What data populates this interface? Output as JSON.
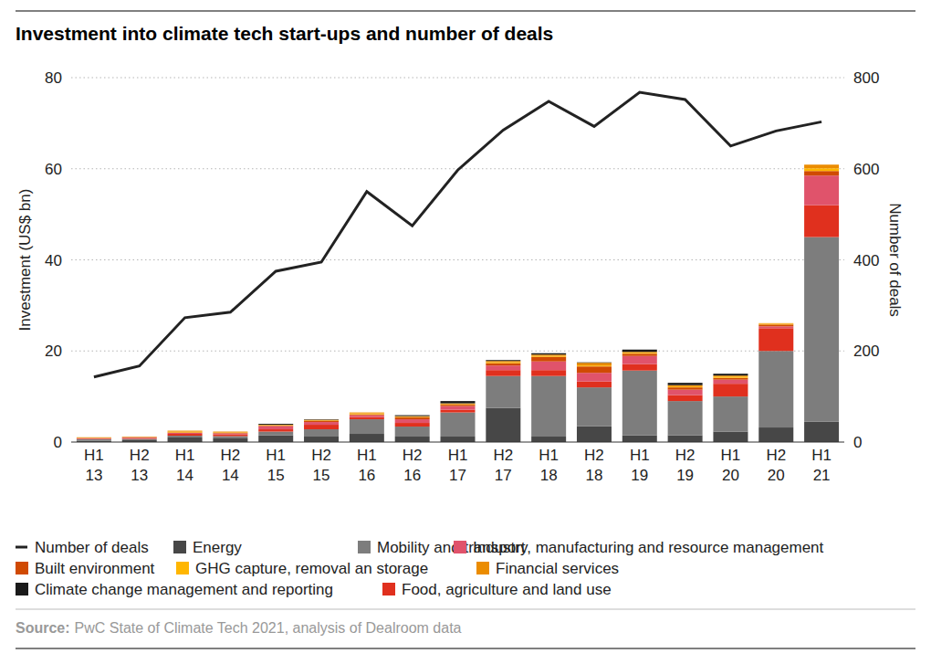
{
  "chart_data": {
    "type": "bar",
    "title": "Investment into climate tech start-ups and number of deals",
    "y_label": "Investment (US$ bn)",
    "y2_label": "Number of deals",
    "source_label": "Source:",
    "source": "PwC State of Climate Tech 2021, analysis of Dealroom data",
    "stacked": true,
    "grid": true,
    "legend": "bottom",
    "categories": [
      "H1 13",
      "H2 13",
      "H1 14",
      "H2 14",
      "H1 15",
      "H2 15",
      "H1 16",
      "H2 16",
      "H1 17",
      "H2 17",
      "H1 18",
      "H2 18",
      "H1 19",
      "H2 19",
      "H1 20",
      "H2 20",
      "H1 21"
    ],
    "ylim": [
      0,
      80
    ],
    "yticks": [
      0,
      20,
      40,
      60,
      80
    ],
    "y2lim": [
      0,
      800
    ],
    "y2ticks": [
      0,
      200,
      400,
      600,
      800
    ],
    "series": [
      {
        "name": "Energy",
        "color": "#474747",
        "values": [
          0.3,
          0.4,
          1.0,
          0.8,
          1.5,
          1.2,
          1.8,
          1.2,
          1.2,
          7.5,
          1.2,
          3.5,
          1.5,
          1.5,
          2.3,
          3.2,
          4.5
        ]
      },
      {
        "name": "Mobility and transport",
        "color": "#7d7d7d",
        "values": [
          0.3,
          0.3,
          0.4,
          0.5,
          0.8,
          1.6,
          3.2,
          2.2,
          5.3,
          7.0,
          13.3,
          8.5,
          14.2,
          7.5,
          7.7,
          16.8,
          40.5
        ]
      },
      {
        "name": "Food, agriculture and land use",
        "color": "#e0301e",
        "values": [
          0.1,
          0.2,
          0.4,
          0.4,
          0.5,
          1.0,
          0.5,
          0.8,
          0.6,
          1.3,
          1.3,
          1.3,
          1.4,
          1.3,
          2.8,
          5.0,
          7.0
        ]
      },
      {
        "name": "Industry, manufacturing and resource management",
        "color": "#e0536b",
        "values": [
          0.1,
          0.1,
          0.2,
          0.2,
          0.7,
          0.6,
          0.4,
          0.8,
          0.8,
          1.0,
          1.9,
          1.9,
          1.8,
          1.2,
          0.9,
          0.4,
          6.5
        ]
      },
      {
        "name": "Built environment",
        "color": "#d04a02",
        "values": [
          0.1,
          0.1,
          0.1,
          0.1,
          0.1,
          0.3,
          0.2,
          0.4,
          0.3,
          0.5,
          1.0,
          1.4,
          0.5,
          0.5,
          0.4,
          0.4,
          1.0
        ]
      },
      {
        "name": "GHG capture, removal an storage",
        "color": "#ffb600",
        "values": [
          0.05,
          0.05,
          0.2,
          0.1,
          0.1,
          0.1,
          0.2,
          0.1,
          0.1,
          0.2,
          0.2,
          0.2,
          0.2,
          0.2,
          0.3,
          0.2,
          0.6
        ]
      },
      {
        "name": "Financial services",
        "color": "#eb8c00",
        "values": [
          0.1,
          0.05,
          0.2,
          0.2,
          0.1,
          0.1,
          0.2,
          0.2,
          0.2,
          0.3,
          0.3,
          0.6,
          0.2,
          0.3,
          0.2,
          0.1,
          0.8
        ]
      },
      {
        "name": "Climate change management and reporting",
        "color": "#1a1a1a",
        "values": [
          0,
          0,
          0,
          0,
          0.2,
          0.1,
          0,
          0.2,
          0.5,
          0.2,
          0.3,
          0.1,
          0.5,
          0.5,
          0.4,
          0,
          0
        ]
      },
      {
        "name": "Number of deals",
        "type": "line",
        "axis": "y2",
        "color": "#222222",
        "values": [
          143,
          167,
          273,
          285,
          375,
          395,
          550,
          475,
          597,
          685,
          748,
          693,
          768,
          752,
          650,
          683,
          703
        ]
      }
    ]
  }
}
